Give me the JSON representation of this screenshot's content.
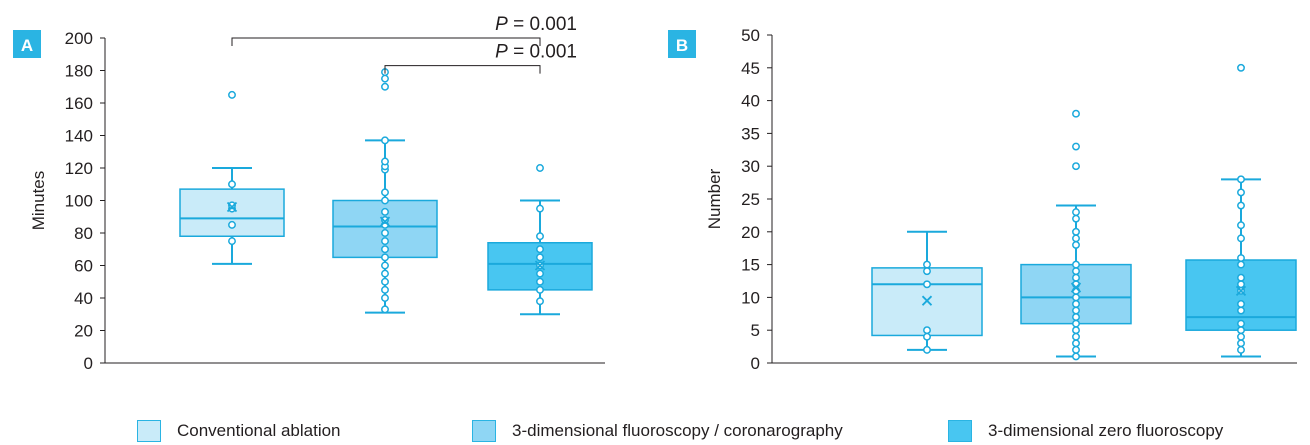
{
  "colors": {
    "accent": "#1aa9dc",
    "axis": "#231f20",
    "panel_badge": "#2ab4e3",
    "fills": [
      "#c9ebf9",
      "#8fd6f4",
      "#48c6f1"
    ]
  },
  "legend": [
    {
      "label": "Conventional ablation",
      "color": "#c9ebf9"
    },
    {
      "label": "3-dimensional fluoroscopy / coronarography",
      "color": "#8fd6f4"
    },
    {
      "label": "3-dimensional zero fluoroscopy",
      "color": "#48c6f1"
    }
  ],
  "chart_data": [
    {
      "type": "box",
      "panel_label": "A",
      "ylabel": "Minutes",
      "xlabel": "",
      "ylim": [
        0,
        200
      ],
      "yticks": [
        0,
        20,
        40,
        60,
        80,
        100,
        120,
        140,
        160,
        180,
        200
      ],
      "grid": false,
      "groups": [
        {
          "name": "Conventional ablation",
          "whisker_low": 61,
          "q1": 78,
          "median": 89,
          "q3": 107,
          "whisker_high": 120,
          "mean": 96,
          "points": [
            75,
            85,
            95,
            97,
            110
          ],
          "outliers": [
            165
          ]
        },
        {
          "name": "3-dimensional fluoroscopy / coronarography",
          "whisker_low": 31,
          "q1": 65,
          "median": 84,
          "q3": 100,
          "whisker_high": 137,
          "mean": 87,
          "points": [
            33,
            40,
            45,
            50,
            55,
            60,
            65,
            70,
            75,
            80,
            85,
            88,
            93,
            100,
            105,
            119,
            121,
            124,
            137
          ],
          "outliers": [
            170,
            175,
            179
          ]
        },
        {
          "name": "3-dimensional zero fluoroscopy",
          "whisker_low": 30,
          "q1": 45,
          "median": 61,
          "q3": 74,
          "whisker_high": 100,
          "mean": 60,
          "points": [
            38,
            45,
            50,
            55,
            60,
            65,
            70,
            78,
            95
          ],
          "outliers": [
            120
          ]
        }
      ],
      "annotations": [
        {
          "prefix": "P",
          "text": " = 0.001",
          "from": 0,
          "to": 2,
          "level": 200
        },
        {
          "prefix": "P",
          "text": " = 0.001",
          "from": 1,
          "to": 2,
          "level": 183
        }
      ]
    },
    {
      "type": "box",
      "panel_label": "B",
      "ylabel": "Number",
      "xlabel": "",
      "ylim": [
        0,
        50
      ],
      "yticks": [
        0,
        5,
        10,
        15,
        20,
        25,
        30,
        35,
        40,
        45,
        50
      ],
      "grid": false,
      "groups": [
        {
          "name": "Conventional ablation",
          "whisker_low": 2,
          "q1": 4.2,
          "median": 12,
          "q3": 14.5,
          "whisker_high": 20,
          "mean": 9.5,
          "points": [
            2,
            4,
            5,
            12,
            14,
            15
          ],
          "outliers": []
        },
        {
          "name": "3-dimensional fluoroscopy / coronarography",
          "whisker_low": 1,
          "q1": 6,
          "median": 10,
          "q3": 15,
          "whisker_high": 24,
          "mean": 11.5,
          "points": [
            1,
            2,
            3,
            4,
            5,
            6,
            7,
            8,
            9,
            10,
            11,
            12,
            13,
            14,
            15,
            18,
            19,
            20,
            22,
            23
          ],
          "outliers": [
            30,
            33,
            38
          ]
        },
        {
          "name": "3-dimensional zero fluoroscopy",
          "whisker_low": 1,
          "q1": 5,
          "median": 7,
          "q3": 15.7,
          "whisker_high": 28,
          "mean": 11,
          "points": [
            2,
            3,
            4,
            5,
            6,
            8,
            9,
            11,
            12,
            13,
            15,
            16,
            19,
            21,
            24,
            26,
            28
          ],
          "outliers": [
            45
          ]
        }
      ],
      "annotations": []
    }
  ]
}
